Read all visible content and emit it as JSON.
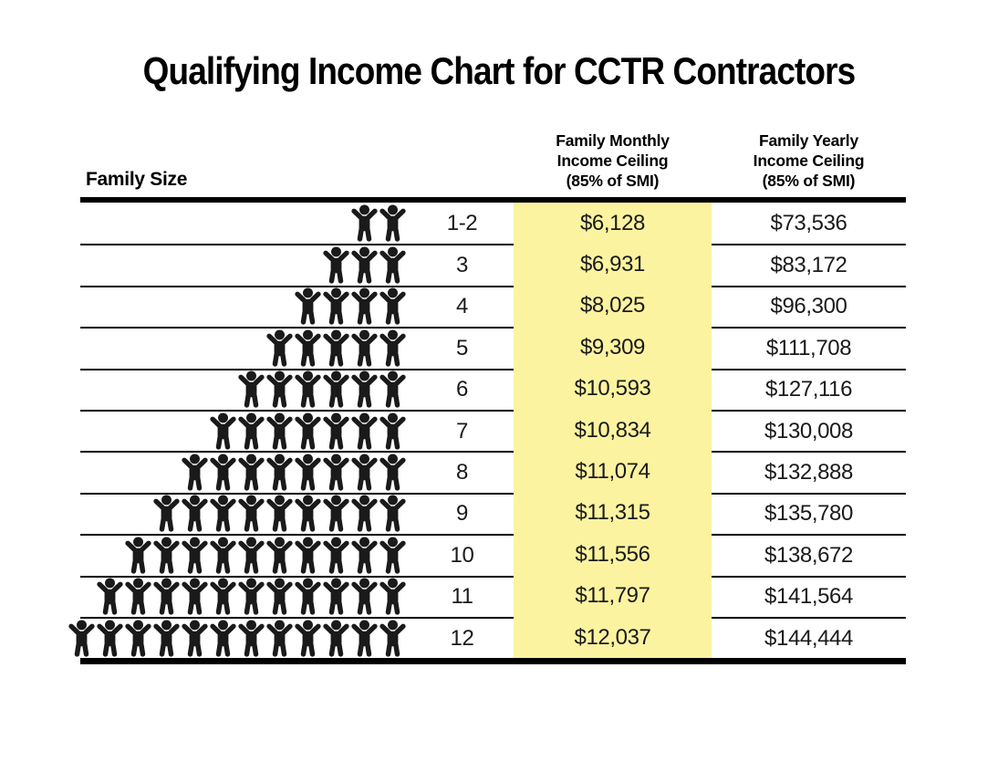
{
  "title": "Qualifying Income Chart for CCTR Contractors",
  "table": {
    "columns": {
      "family_size_label": "Family Size",
      "monthly_header": [
        "Family Monthly",
        "Income Ceiling",
        "(85% of SMI)"
      ],
      "yearly_header": [
        "Family Yearly",
        "Income Ceiling",
        "(85% of SMI)"
      ]
    },
    "rows": [
      {
        "family_size": "1-2",
        "people": 2,
        "monthly": "$6,128",
        "yearly": "$73,536"
      },
      {
        "family_size": "3",
        "people": 3,
        "monthly": "$6,931",
        "yearly": "$83,172"
      },
      {
        "family_size": "4",
        "people": 4,
        "monthly": "$8,025",
        "yearly": "$96,300"
      },
      {
        "family_size": "5",
        "people": 5,
        "monthly": "$9,309",
        "yearly": "$111,708"
      },
      {
        "family_size": "6",
        "people": 6,
        "monthly": "$10,593",
        "yearly": "$127,116"
      },
      {
        "family_size": "7",
        "people": 7,
        "monthly": "$10,834",
        "yearly": "$130,008"
      },
      {
        "family_size": "8",
        "people": 8,
        "monthly": "$11,074",
        "yearly": "$132,888"
      },
      {
        "family_size": "9",
        "people": 9,
        "monthly": "$11,315",
        "yearly": "$135,780"
      },
      {
        "family_size": "10",
        "people": 10,
        "monthly": "$11,556",
        "yearly": "$138,672"
      },
      {
        "family_size": "11",
        "people": 11,
        "monthly": "$11,797",
        "yearly": "$141,564"
      },
      {
        "family_size": "12",
        "people": 12,
        "monthly": "$12,037",
        "yearly": "$144,444"
      }
    ]
  },
  "colors": {
    "highlight_yellow": "#FCF3A0",
    "line_black": "#000000",
    "text": "#1A1A1A"
  },
  "icons": {
    "person_icon_meaning": "person pictogram with raised arms, repeated to show family size"
  },
  "chart_data": {
    "type": "table",
    "title": "Qualifying Income Chart for CCTR Contractors",
    "columns": [
      "Family Size",
      "Family Monthly Income Ceiling (85% of SMI)",
      "Family Yearly Income Ceiling (85% of SMI)"
    ],
    "rows": [
      [
        "1-2",
        6128,
        73536
      ],
      [
        "3",
        6931,
        83172
      ],
      [
        "4",
        8025,
        96300
      ],
      [
        "5",
        9309,
        111708
      ],
      [
        "6",
        10593,
        127116
      ],
      [
        "7",
        10834,
        130008
      ],
      [
        "8",
        11074,
        132888
      ],
      [
        "9",
        11315,
        135780
      ],
      [
        "10",
        11556,
        138672
      ],
      [
        "11",
        11797,
        141564
      ],
      [
        "12",
        12037,
        144444
      ]
    ],
    "notes": "Monthly income ceiling column highlighted in pale yellow; family size shown as person pictograms plus number"
  }
}
